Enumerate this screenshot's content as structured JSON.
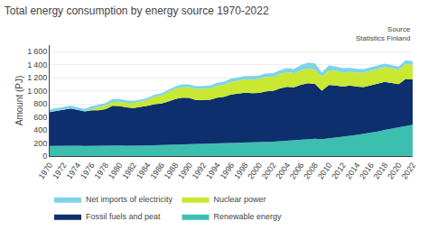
{
  "chart_data": {
    "type": "area",
    "stacked": true,
    "title": "Total energy consumption by energy source 1970-2022",
    "annotations": [
      "Source\nStatistics Finland"
    ],
    "ylabel": "Amount (PJ)",
    "x": [
      1970,
      1971,
      1972,
      1973,
      1974,
      1975,
      1976,
      1977,
      1978,
      1979,
      1980,
      1981,
      1982,
      1983,
      1984,
      1985,
      1986,
      1987,
      1988,
      1989,
      1990,
      1991,
      1992,
      1993,
      1994,
      1995,
      1996,
      1997,
      1998,
      1999,
      2000,
      2001,
      2002,
      2003,
      2004,
      2005,
      2006,
      2007,
      2008,
      2009,
      2010,
      2011,
      2012,
      2013,
      2014,
      2015,
      2016,
      2017,
      2018,
      2019,
      2020,
      2021,
      2022
    ],
    "series": [
      {
        "name": "Renewable energy",
        "color": "#3dbfb0",
        "values": [
          155,
          158,
          162,
          165,
          160,
          155,
          158,
          155,
          158,
          165,
          162,
          160,
          158,
          160,
          162,
          165,
          168,
          170,
          175,
          180,
          182,
          180,
          182,
          185,
          188,
          190,
          195,
          198,
          202,
          205,
          210,
          215,
          220,
          228,
          235,
          240,
          248,
          255,
          265,
          260,
          270,
          285,
          295,
          310,
          325,
          340,
          355,
          375,
          400,
          420,
          435,
          455,
          480
        ]
      },
      {
        "name": "Fossil fuels and peat",
        "color": "#0d2f6e",
        "values": [
          520,
          535,
          548,
          565,
          548,
          528,
          545,
          545,
          560,
          605,
          605,
          585,
          578,
          588,
          608,
          628,
          638,
          665,
          698,
          715,
          708,
          678,
          678,
          678,
          708,
          718,
          748,
          758,
          768,
          758,
          758,
          778,
          778,
          808,
          825,
          815,
          845,
          862,
          840,
          742,
          820,
          798,
          770,
          770,
          738,
          718,
          728,
          738,
          738,
          698,
          668,
          728,
          695
        ]
      },
      {
        "name": "Nuclear power",
        "color": "#c8e832",
        "values": [
          0,
          0,
          0,
          0,
          0,
          0,
          18,
          45,
          55,
          60,
          65,
          72,
          80,
          85,
          90,
          115,
          120,
          145,
          155,
          160,
          165,
          170,
          175,
          175,
          180,
          185,
          195,
          200,
          205,
          210,
          215,
          220,
          215,
          220,
          225,
          215,
          220,
          225,
          220,
          215,
          225,
          220,
          215,
          210,
          215,
          220,
          225,
          225,
          225,
          225,
          220,
          230,
          220
        ]
      },
      {
        "name": "Net imports of electricity",
        "color": "#7dd4e8",
        "values": [
          40,
          42,
          42,
          45,
          40,
          38,
          42,
          38,
          40,
          44,
          42,
          35,
          32,
          30,
          30,
          32,
          34,
          36,
          40,
          44,
          44,
          40,
          40,
          44,
          48,
          48,
          52,
          48,
          50,
          52,
          52,
          56,
          56,
          60,
          64,
          64,
          82,
          90,
          94,
          64,
          74,
          70,
          66,
          62,
          58,
          56,
          54,
          54,
          54,
          50,
          48,
          54,
          58
        ]
      }
    ],
    "xlim": [
      1970,
      2022
    ],
    "xticks": [
      1970,
      1972,
      1974,
      1976,
      1978,
      1980,
      1982,
      1984,
      1986,
      1988,
      1990,
      1992,
      1994,
      1996,
      1998,
      2000,
      2002,
      2004,
      2006,
      2008,
      2010,
      2012,
      2014,
      2016,
      2018,
      2020,
      2022
    ],
    "ylim": [
      0,
      1700
    ],
    "yticks": [
      0,
      200,
      400,
      600,
      800,
      {
        "value": 1000,
        "label": "1 000"
      },
      {
        "value": 1200,
        "label": "1 200"
      },
      {
        "value": 1400,
        "label": "1 400"
      },
      {
        "value": 1600,
        "label": "1 600"
      }
    ],
    "grid": true,
    "legend": "bottom"
  }
}
